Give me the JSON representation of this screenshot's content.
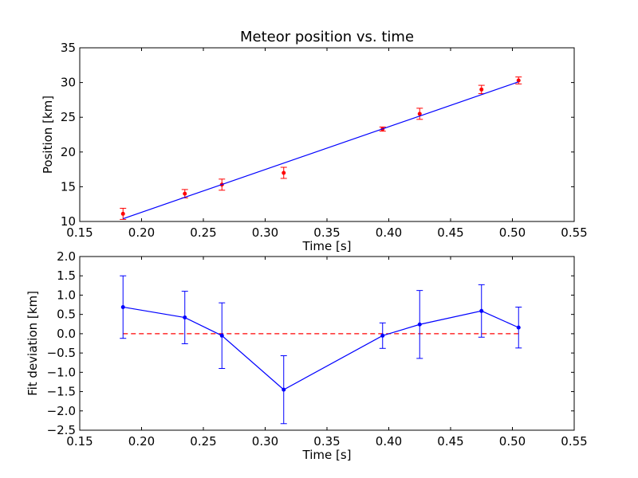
{
  "chart_data": [
    {
      "type": "scatter",
      "title": "Meteor position vs. time",
      "xlabel": "Time [s]",
      "ylabel": "Position [km]",
      "xlim": [
        0.15,
        0.55
      ],
      "ylim": [
        10,
        35
      ],
      "xticks": [
        "0.15",
        "0.20",
        "0.25",
        "0.30",
        "0.35",
        "0.40",
        "0.45",
        "0.50",
        "0.55"
      ],
      "yticks": [
        "10",
        "15",
        "20",
        "25",
        "30",
        "35"
      ],
      "grid": false,
      "series": [
        {
          "kind": "errorbar-points",
          "color": "#ff0000",
          "x": [
            0.185,
            0.235,
            0.265,
            0.315,
            0.395,
            0.425,
            0.475,
            0.505
          ],
          "y": [
            11.1,
            14.0,
            15.3,
            17.0,
            23.3,
            25.5,
            29.0,
            30.3
          ],
          "yerr": [
            0.8,
            0.6,
            0.8,
            0.8,
            0.3,
            0.8,
            0.6,
            0.5
          ]
        },
        {
          "kind": "fit-line",
          "color": "#0000ff",
          "x": [
            0.185,
            0.505
          ],
          "y": [
            10.4,
            30.1
          ]
        }
      ]
    },
    {
      "type": "line",
      "title": "",
      "xlabel": "Time [s]",
      "ylabel": "Fit deviation [km]",
      "xlim": [
        0.15,
        0.55
      ],
      "ylim": [
        -2.5,
        2.0
      ],
      "xticks": [
        "0.15",
        "0.20",
        "0.25",
        "0.30",
        "0.35",
        "0.40",
        "0.45",
        "0.50",
        "0.55"
      ],
      "yticks": [
        "-2.5",
        "-2.0",
        "-1.5",
        "-1.0",
        "-0.5",
        "0.0",
        "0.5",
        "1.0",
        "1.5",
        "2.0"
      ],
      "grid": false,
      "reference_line": {
        "y": 0.0,
        "color": "#ff0000",
        "style": "dashed"
      },
      "series": [
        {
          "kind": "errorbar-line",
          "color": "#0000ff",
          "x": [
            0.185,
            0.235,
            0.265,
            0.315,
            0.395,
            0.425,
            0.475,
            0.505
          ],
          "y": [
            0.69,
            0.42,
            -0.05,
            -1.45,
            -0.05,
            0.24,
            0.59,
            0.16
          ],
          "yerr": [
            0.81,
            0.68,
            0.85,
            0.88,
            0.33,
            0.88,
            0.68,
            0.53
          ]
        }
      ]
    }
  ]
}
